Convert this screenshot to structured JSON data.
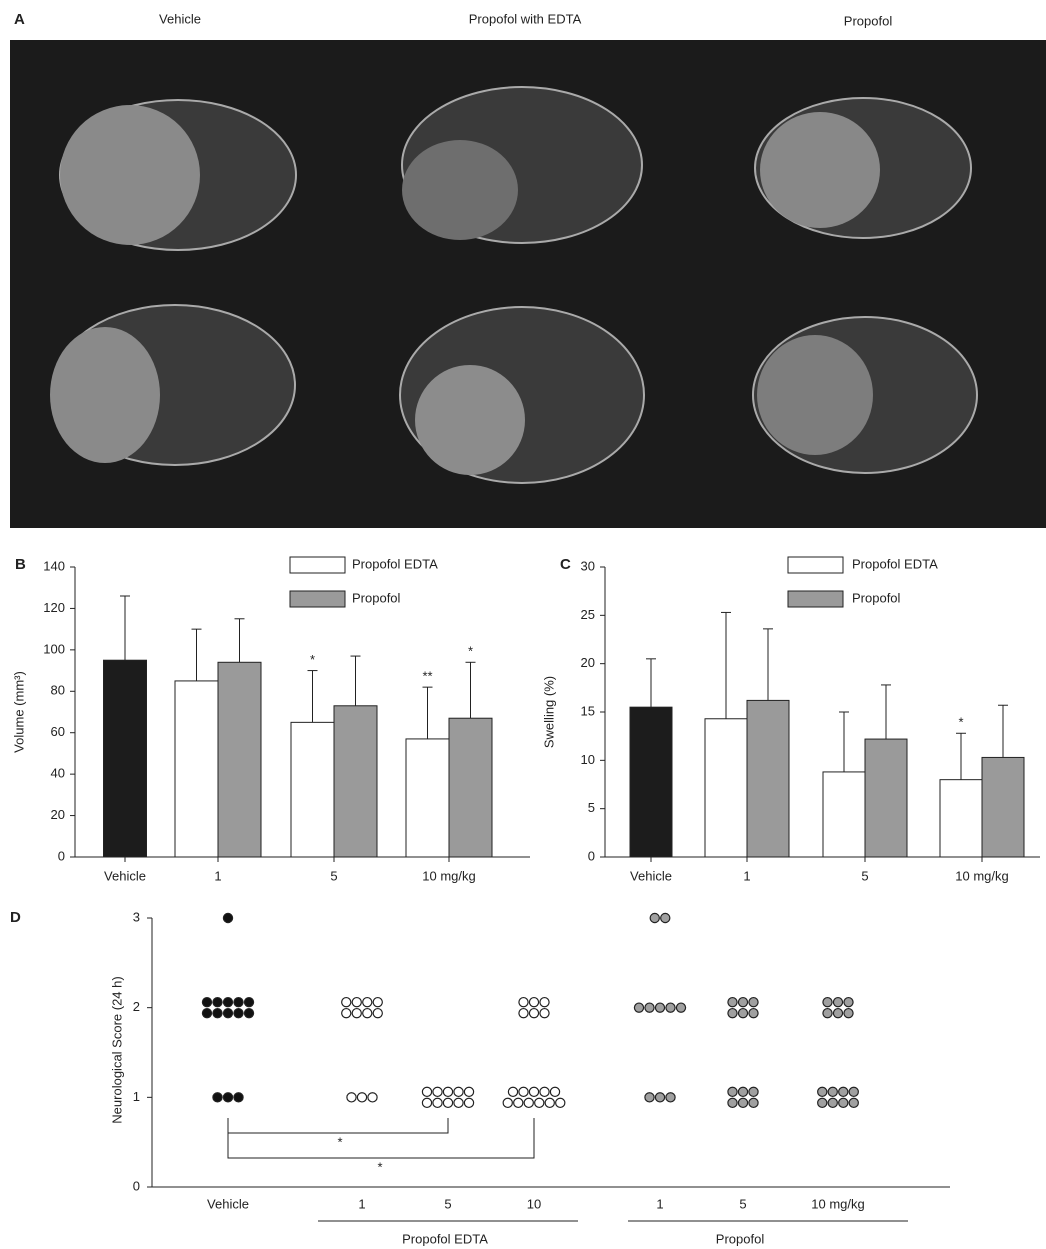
{
  "panel_a": {
    "label": "A",
    "columns": [
      "Vehicle",
      "Propofol with EDTA",
      "Propofol"
    ]
  },
  "chart_data": [
    {
      "type": "bar",
      "label": "B",
      "y_label": "Volume (mm³)",
      "categories": [
        "Vehicle",
        "1",
        "5",
        "10  mg/kg"
      ],
      "series": [
        {
          "color": "#1c1c1c",
          "values": [
            95,
            null,
            null,
            null
          ],
          "errors": [
            31,
            null,
            null,
            null
          ]
        },
        {
          "name": "Propofol EDTA",
          "color": "#ffffff",
          "values": [
            null,
            85,
            65,
            57
          ],
          "errors": [
            null,
            25,
            25,
            25
          ],
          "value_labels": [
            null,
            null,
            "*",
            "**"
          ]
        },
        {
          "name": "Propofol",
          "color": "#9a9a9a",
          "values": [
            null,
            94,
            73,
            67
          ],
          "errors": [
            null,
            21,
            24,
            27
          ],
          "value_labels": [
            null,
            null,
            null,
            "*"
          ]
        }
      ],
      "ylim": [
        0,
        140
      ],
      "yticks": [
        0,
        20,
        40,
        60,
        80,
        100,
        120,
        140
      ]
    },
    {
      "type": "bar",
      "label": "C",
      "y_label": "Swelling (%)",
      "categories": [
        "Vehicle",
        "1",
        "5",
        "10 mg/kg"
      ],
      "series": [
        {
          "color": "#1c1c1c",
          "values": [
            15.5,
            null,
            null,
            null
          ],
          "errors": [
            5,
            null,
            null,
            null
          ]
        },
        {
          "name": "Propofol EDTA",
          "color": "#ffffff",
          "values": [
            null,
            14.3,
            8.8,
            8
          ],
          "errors": [
            null,
            11,
            6.2,
            4.8
          ],
          "value_labels": [
            null,
            null,
            null,
            "*"
          ]
        },
        {
          "name": "Propofol",
          "color": "#9a9a9a",
          "values": [
            null,
            16.2,
            12.2,
            10.3
          ],
          "errors": [
            null,
            7.4,
            5.6,
            5.4
          ]
        }
      ],
      "ylim": [
        0,
        30
      ],
      "yticks": [
        0,
        5,
        10,
        15,
        20,
        25,
        30
      ]
    },
    {
      "type": "dot",
      "label": "D",
      "y_label": "Neurological Score (24 h)",
      "categories": [
        "Vehicle",
        "1",
        "5",
        "10",
        "1",
        "5",
        "10 mg/kg"
      ],
      "groups": [
        "Propofol EDTA",
        "Propofol"
      ],
      "category_colors": [
        "#111111",
        "#ffffff",
        "#ffffff",
        "#ffffff",
        "#a0a0a0",
        "#a0a0a0",
        "#a0a0a0"
      ],
      "scores": [
        3,
        2,
        1
      ],
      "counts": [
        [
          1,
          0,
          0,
          0,
          2,
          0,
          0
        ],
        [
          10,
          8,
          0,
          6,
          5,
          6,
          6
        ],
        [
          3,
          3,
          10,
          11,
          3,
          6,
          8
        ]
      ],
      "annotations": [
        "*",
        "*"
      ],
      "ylim": [
        0,
        3
      ],
      "yticks": [
        0,
        1,
        2,
        3
      ]
    }
  ]
}
